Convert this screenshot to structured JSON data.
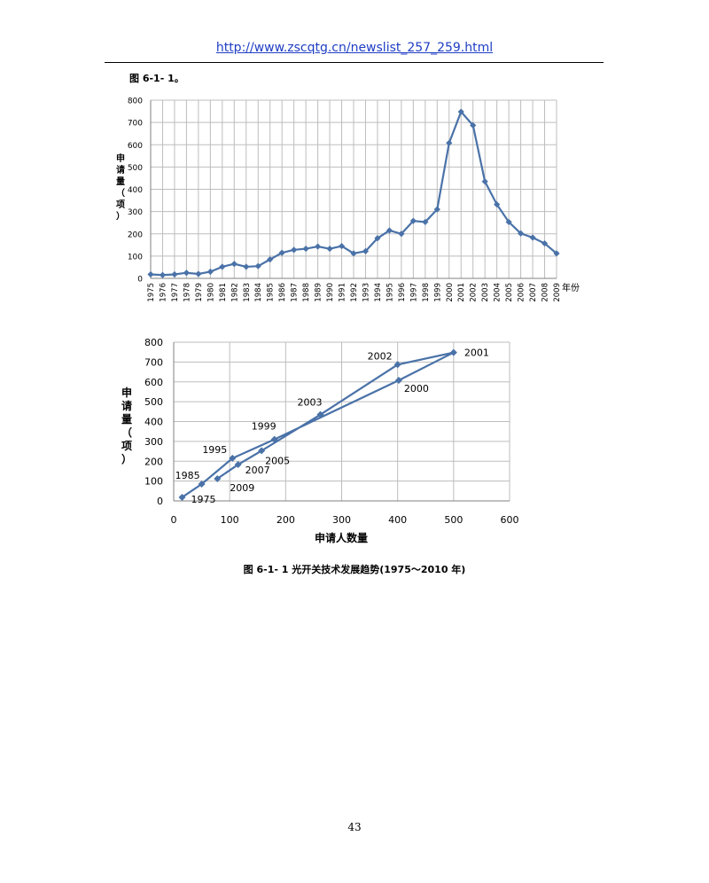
{
  "header": {
    "url": "http://www.zscqtg.cn/newslist_257_259.html"
  },
  "intro_ref": "图 6-1- 1。",
  "caption": "图 6-1- 1   光开关技术发展趋势(1975～2010 年)",
  "page_number": "43",
  "colors": {
    "series": "#4a72a8",
    "grid": "#bdbdbd"
  },
  "chart_data": [
    {
      "type": "line",
      "ylabel": "申请量（项）",
      "xlabel": "年份",
      "ylim": [
        0,
        800
      ],
      "yticks": [
        0,
        100,
        200,
        300,
        400,
        500,
        600,
        700,
        800
      ],
      "grid": true,
      "categories": [
        "1975",
        "1976",
        "1977",
        "1978",
        "1979",
        "1980",
        "1981",
        "1982",
        "1983",
        "1984",
        "1985",
        "1986",
        "1987",
        "1988",
        "1989",
        "1990",
        "1991",
        "1992",
        "1993",
        "1994",
        "1995",
        "1996",
        "1997",
        "1998",
        "1999",
        "2000",
        "2001",
        "2002",
        "2003",
        "2004",
        "2005",
        "2006",
        "2007",
        "2008",
        "2009"
      ],
      "values": [
        18,
        15,
        18,
        25,
        20,
        30,
        52,
        65,
        52,
        55,
        85,
        115,
        128,
        133,
        143,
        133,
        145,
        112,
        122,
        180,
        215,
        200,
        258,
        253,
        310,
        608,
        748,
        687,
        435,
        332,
        253,
        202,
        183,
        157,
        112
      ]
    },
    {
      "type": "scatter",
      "xlabel": "申请人数量",
      "ylabel": "申请量（项）",
      "xlim": [
        0,
        600
      ],
      "ylim": [
        0,
        800
      ],
      "xticks": [
        0,
        100,
        200,
        300,
        400,
        500,
        600
      ],
      "yticks": [
        0,
        100,
        200,
        300,
        400,
        500,
        600,
        700,
        800
      ],
      "grid": true,
      "points": [
        {
          "x": 15,
          "y": 18
        },
        {
          "x": 50,
          "y": 85
        },
        {
          "x": 105,
          "y": 215
        },
        {
          "x": 180,
          "y": 310
        },
        {
          "x": 402,
          "y": 608
        },
        {
          "x": 500,
          "y": 748
        },
        {
          "x": 400,
          "y": 687
        },
        {
          "x": 262,
          "y": 435
        },
        {
          "x": 157,
          "y": 253
        },
        {
          "x": 115,
          "y": 183
        },
        {
          "x": 78,
          "y": 112
        }
      ],
      "annotations": [
        {
          "text": "1975",
          "x": 15,
          "y": 18,
          "anchor": "start",
          "dx": 10,
          "dy": 6
        },
        {
          "text": "1985",
          "x": 50,
          "y": 85,
          "anchor": "end",
          "dx": -2,
          "dy": -6
        },
        {
          "text": "1995",
          "x": 105,
          "y": 215,
          "anchor": "end",
          "dx": -6,
          "dy": -6
        },
        {
          "text": "1999",
          "x": 180,
          "y": 310,
          "anchor": "middle",
          "dx": -12,
          "dy": -11
        },
        {
          "text": "2000",
          "x": 402,
          "y": 608,
          "anchor": "start",
          "dx": 6,
          "dy": 13
        },
        {
          "text": "2001",
          "x": 500,
          "y": 748,
          "anchor": "start",
          "dx": 12,
          "dy": 4
        },
        {
          "text": "2002",
          "x": 400,
          "y": 687,
          "anchor": "end",
          "dx": -6,
          "dy": -6
        },
        {
          "text": "2003",
          "x": 262,
          "y": 435,
          "anchor": "end",
          "dx": 2,
          "dy": -10
        },
        {
          "text": "2005",
          "x": 157,
          "y": 253,
          "anchor": "start",
          "dx": 4,
          "dy": 15
        },
        {
          "text": "2007",
          "x": 115,
          "y": 183,
          "anchor": "start",
          "dx": 8,
          "dy": 10
        },
        {
          "text": "2009",
          "x": 78,
          "y": 112,
          "anchor": "start",
          "dx": 14,
          "dy": 14
        }
      ]
    }
  ]
}
